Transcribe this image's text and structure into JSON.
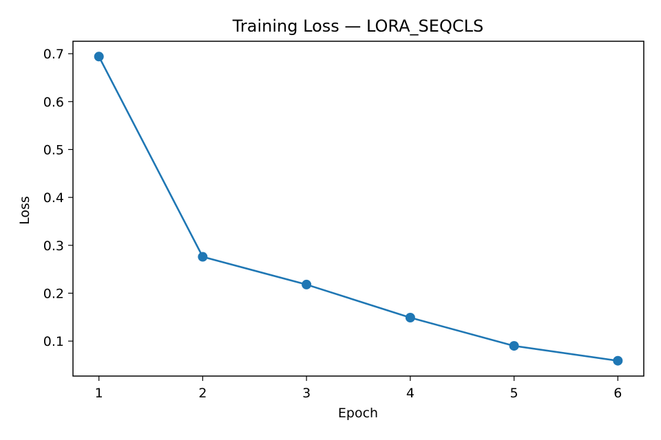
{
  "chart_data": {
    "type": "line",
    "title": "Training Loss — LORA_SEQCLS",
    "xlabel": "Epoch",
    "ylabel": "Loss",
    "x": [
      1,
      2,
      3,
      4,
      5,
      6
    ],
    "series": [
      {
        "values": [
          0.694,
          0.276,
          0.218,
          0.149,
          0.09,
          0.059
        ],
        "color": "#1f77b4",
        "marker": "circle"
      }
    ],
    "xlim": [
      0.75,
      6.25
    ],
    "ylim": [
      0.027,
      0.726
    ],
    "xticks": [
      "1",
      "2",
      "3",
      "4",
      "5",
      "6"
    ],
    "yticks": [
      "0.1",
      "0.2",
      "0.3",
      "0.4",
      "0.5",
      "0.6",
      "0.7"
    ],
    "grid": false,
    "legend": "none"
  }
}
